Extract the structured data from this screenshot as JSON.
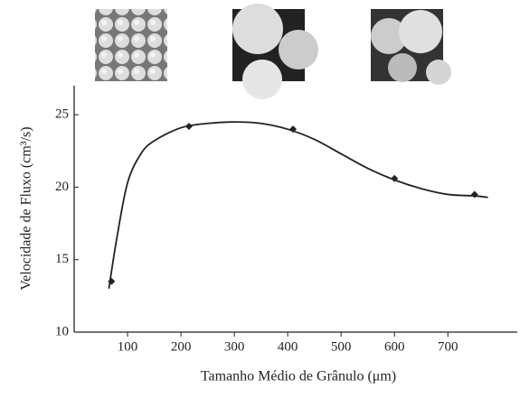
{
  "chart_data": {
    "type": "scatter",
    "y_label": "Velocidade de Fluxo (cm³/s)",
    "x_label": "Tamanho Médio de Grânulo (μm)",
    "xlim": [
      0,
      830
    ],
    "xticks": [
      100,
      200,
      300,
      400,
      500,
      600,
      700
    ],
    "ylim": [
      10,
      27
    ],
    "yticks": [
      10,
      15,
      20,
      25
    ],
    "color": "#222222",
    "series": [
      {
        "x": [
          70,
          215,
          410,
          600,
          750
        ],
        "values": [
          13.5,
          24.2,
          24.0,
          20.6,
          19.5
        ]
      }
    ],
    "curve": {
      "x": [
        65,
        80,
        100,
        125,
        150,
        200,
        250,
        300,
        350,
        400,
        450,
        500,
        550,
        600,
        650,
        700,
        750,
        775
      ],
      "values": [
        13.0,
        16.5,
        20.3,
        22.3,
        23.2,
        24.1,
        24.4,
        24.5,
        24.4,
        24.0,
        23.3,
        22.3,
        21.3,
        20.5,
        19.9,
        19.5,
        19.4,
        19.3
      ]
    }
  }
}
